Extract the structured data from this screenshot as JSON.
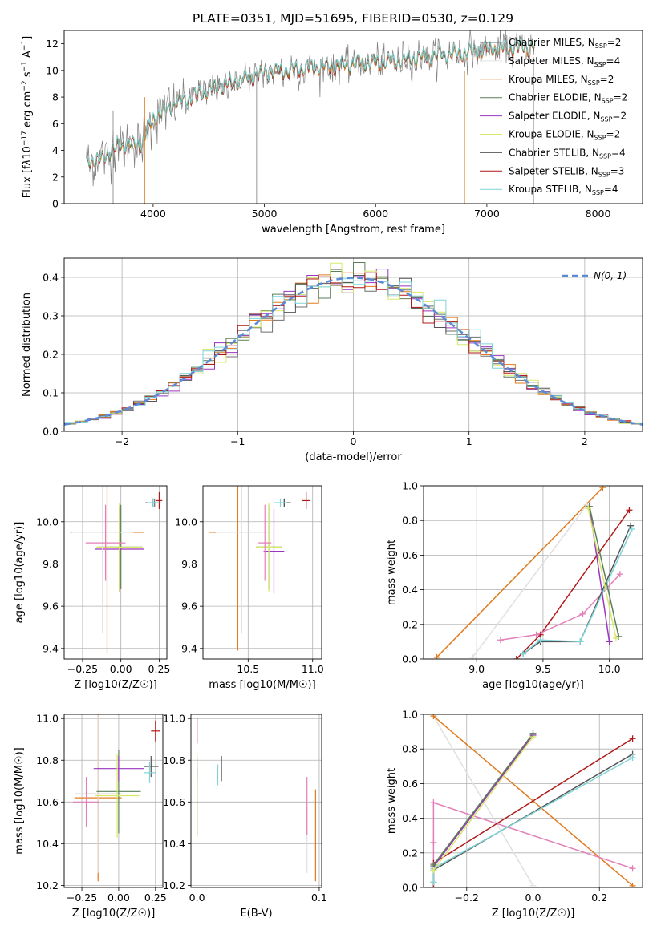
{
  "figure": {
    "title": "PLATE=0351, MJD=51695, FIBERID=0530, z=0.129"
  },
  "models": [
    {
      "name": "Chabrier MILES",
      "n_ssp": "2",
      "color": "#6f6f6f"
    },
    {
      "name": "Salpeter MILES",
      "n_ssp": "4",
      "color": "#e0e0e0"
    },
    {
      "name": "Kroupa MILES",
      "n_ssp": "2",
      "color": "#e07b1f"
    },
    {
      "name": "Chabrier ELODIE",
      "n_ssp": "2",
      "color": "#5a7f5a"
    },
    {
      "name": "Salpeter ELODIE",
      "n_ssp": "2",
      "color": "#9a35c0"
    },
    {
      "name": "Kroupa ELODIE",
      "n_ssp": "2",
      "color": "#d9e86a"
    },
    {
      "name": "Chabrier STELIB",
      "n_ssp": "4",
      "color": "#555555"
    },
    {
      "name": "Salpeter STELIB",
      "n_ssp": "3",
      "color": "#b01818"
    },
    {
      "name": "Kroupa STELIB",
      "n_ssp": "4",
      "color": "#7fd4d8"
    }
  ],
  "chart_data": [
    {
      "id": "spectrum",
      "type": "line",
      "title": "PLATE=0351, MJD=51695, FIBERID=0530, z=0.129",
      "xlabel": "wavelength [Angstrom, rest frame]",
      "ylabel": "Flux [f_λ 10^-17 erg cm^-2 s^-1 A^-1]",
      "xlim": [
        3200,
        8400
      ],
      "ylim": [
        0,
        13
      ],
      "xticks": [
        "4000",
        "5000",
        "6000",
        "7000",
        "8000"
      ],
      "yticks": [
        "0",
        "2",
        "4",
        "6",
        "8",
        "10",
        "12"
      ],
      "grid": false,
      "legend": "top-right",
      "spectrum_anchors": {
        "x": [
          3400,
          3500,
          3700,
          3900,
          4000,
          4200,
          4400,
          4600,
          4800,
          5000,
          5200,
          5400,
          5600,
          5800,
          6000,
          6200,
          6400,
          6600,
          6800,
          7000,
          7200,
          7400
        ],
        "y": [
          3.3,
          3.2,
          4.4,
          4.5,
          6.4,
          7.5,
          8.2,
          8.8,
          9.3,
          9.8,
          10.0,
          10.2,
          10.3,
          10.5,
          10.6,
          10.7,
          11.0,
          11.2,
          11.3,
          11.6,
          11.7,
          11.8
        ]
      }
    },
    {
      "id": "residuals",
      "type": "bar",
      "xlabel": "(data-model)/error",
      "ylabel": "Normed distribution",
      "xlim": [
        -2.5,
        2.5
      ],
      "ylim": [
        0,
        0.45
      ],
      "xticks": [
        "−2",
        "−1",
        "0",
        "1",
        "2"
      ],
      "yticks": [
        "0.0",
        "0.1",
        "0.2",
        "0.3",
        "0.4"
      ],
      "grid": true,
      "legend": "top-right",
      "legend_label": "N(0, 1)",
      "bin_width": 0.1
    },
    {
      "id": "z-age",
      "type": "scatter",
      "xlabel": "Z [log10(Z/Z☉)]",
      "ylabel": "age [log10(age/yr)]",
      "xlim": [
        -0.37,
        0.3
      ],
      "ylim": [
        9.35,
        10.17
      ],
      "xticks": [
        "−0.25",
        "0.00",
        "0.25"
      ],
      "yticks": [
        "9.4",
        "9.6",
        "9.8",
        "10.0"
      ],
      "grid": true,
      "points": [
        {
          "model": 0,
          "x": 0.22,
          "y": 10.09,
          "xerr": 0.04,
          "yerr": 0.02
        },
        {
          "model": 2,
          "x": -0.09,
          "y": 9.95,
          "xerr": 0.24,
          "yerr": 0.57
        },
        {
          "model": 3,
          "x": 0.0,
          "y": 9.88,
          "xerr": 0.14,
          "yerr": 0.2
        },
        {
          "model": 4,
          "x": -0.01,
          "y": 9.87,
          "xerr": 0.16,
          "yerr": 0.2
        },
        {
          "model": 5,
          "x": -0.01,
          "y": 9.88,
          "xerr": 0.15,
          "yerr": 0.21
        },
        {
          "model": 6,
          "x": 0.21,
          "y": 10.09,
          "xerr": 0.05,
          "yerr": 0.02
        },
        {
          "model": 7,
          "x": 0.25,
          "y": 10.1,
          "xerr": 0.02,
          "yerr": 0.04
        },
        {
          "model": 8,
          "x": 0.21,
          "y": 10.09,
          "xerr": 0.04,
          "yerr": 0.02
        },
        {
          "model": 1,
          "x": -0.12,
          "y": 9.95,
          "xerr": 0.2,
          "yerr": 0.48
        },
        {
          "model": 9,
          "x": -0.1,
          "y": 9.9,
          "xerr": 0.13,
          "yerr": 0.18
        }
      ]
    },
    {
      "id": "mass-age",
      "type": "scatter",
      "xlabel": "mass [log10(M/M☉)]",
      "ylabel": "",
      "xlim": [
        10.15,
        11.07
      ],
      "ylim": [
        9.35,
        10.17
      ],
      "xticks": [
        "10.5",
        "11.0"
      ],
      "yticks": [
        "9.4",
        "9.6",
        "9.8",
        "10.0"
      ],
      "grid": true,
      "points": [
        {
          "model": 0,
          "x": 10.78,
          "y": 10.09,
          "xerr": 0.05,
          "yerr": 0.02
        },
        {
          "model": 2,
          "x": 10.42,
          "y": 9.95,
          "xerr": 0.22,
          "yerr": 0.56
        },
        {
          "model": 3,
          "x": 10.66,
          "y": 9.88,
          "xerr": 0.1,
          "yerr": 0.2
        },
        {
          "model": 4,
          "x": 10.7,
          "y": 9.86,
          "xerr": 0.08,
          "yerr": 0.2
        },
        {
          "model": 5,
          "x": 10.66,
          "y": 9.88,
          "xerr": 0.1,
          "yerr": 0.21
        },
        {
          "model": 6,
          "x": 10.78,
          "y": 10.09,
          "xerr": 0.05,
          "yerr": 0.02
        },
        {
          "model": 7,
          "x": 10.95,
          "y": 10.1,
          "xerr": 0.03,
          "yerr": 0.04
        },
        {
          "model": 8,
          "x": 10.75,
          "y": 10.09,
          "xerr": 0.05,
          "yerr": 0.02
        },
        {
          "model": 1,
          "x": 10.45,
          "y": 9.95,
          "xerr": 0.2,
          "yerr": 0.48
        },
        {
          "model": 9,
          "x": 10.63,
          "y": 9.9,
          "xerr": 0.05,
          "yerr": 0.18
        }
      ]
    },
    {
      "id": "age-weight",
      "type": "line",
      "xlabel": "age [log10(age/yr)]",
      "ylabel": "mass weight",
      "xlim": [
        8.6,
        10.25
      ],
      "ylim": [
        0,
        1
      ],
      "xticks": [
        "9.0",
        "9.5",
        "10.0"
      ],
      "yticks": [
        "0.0",
        "0.2",
        "0.4",
        "0.6",
        "0.8",
        "1.0"
      ],
      "grid": true,
      "series": [
        {
          "model": 2,
          "x": [
            8.7,
            9.95
          ],
          "y": [
            0.01,
            0.99
          ]
        },
        {
          "model": 1,
          "x": [
            8.97,
            9.83
          ],
          "y": [
            0.01,
            0.89
          ]
        },
        {
          "model": 7,
          "x": [
            9.3,
            9.48,
            10.15
          ],
          "y": [
            0.0,
            0.14,
            0.86
          ]
        },
        {
          "model": 9,
          "x": [
            9.18,
            9.45,
            9.8,
            10.08
          ],
          "y": [
            0.11,
            0.14,
            0.26,
            0.49
          ]
        },
        {
          "model": 6,
          "x": [
            9.35,
            9.48,
            9.78,
            10.16
          ],
          "y": [
            0.03,
            0.1,
            0.1,
            0.77
          ]
        },
        {
          "model": 8,
          "x": [
            9.35,
            9.48,
            9.78,
            10.17
          ],
          "y": [
            0.03,
            0.11,
            0.1,
            0.75
          ]
        },
        {
          "model": 4,
          "x": [
            9.85,
            10.0
          ],
          "y": [
            0.88,
            0.1
          ]
        },
        {
          "model": 3,
          "x": [
            9.85,
            10.07
          ],
          "y": [
            0.88,
            0.13
          ]
        },
        {
          "model": 5,
          "x": [
            9.84,
            10.05
          ],
          "y": [
            0.87,
            0.12
          ]
        }
      ]
    },
    {
      "id": "z-mass",
      "type": "scatter",
      "xlabel": "Z [log10(Z/Z☉)]",
      "ylabel": "mass [log10(M/M☉)]",
      "xlim": [
        -0.37,
        0.3
      ],
      "ylim": [
        10.19,
        11.02
      ],
      "xticks": [
        "−0.25",
        "0.00",
        "0.25"
      ],
      "yticks": [
        "10.2",
        "10.4",
        "10.6",
        "10.8",
        "11.0"
      ],
      "grid": true,
      "points": [
        {
          "model": 2,
          "x": -0.14,
          "y": 10.62,
          "xerr": 0.16,
          "yerr": 0.4
        },
        {
          "model": 1,
          "x": -0.14,
          "y": 10.64,
          "xerr": 0.16,
          "yerr": 0.38
        },
        {
          "model": 3,
          "x": 0.0,
          "y": 10.65,
          "xerr": 0.15,
          "yerr": 0.2
        },
        {
          "model": 4,
          "x": 0.0,
          "y": 10.76,
          "xerr": 0.17,
          "yerr": 0.06
        },
        {
          "model": 5,
          "x": -0.01,
          "y": 10.63,
          "xerr": 0.15,
          "yerr": 0.2
        },
        {
          "model": 6,
          "x": 0.22,
          "y": 10.77,
          "xerr": 0.05,
          "yerr": 0.05
        },
        {
          "model": 7,
          "x": 0.25,
          "y": 10.94,
          "xerr": 0.03,
          "yerr": 0.05
        },
        {
          "model": 8,
          "x": 0.21,
          "y": 10.74,
          "xerr": 0.04,
          "yerr": 0.05
        },
        {
          "model": 9,
          "x": -0.22,
          "y": 10.6,
          "xerr": 0.09,
          "yerr": 0.12
        }
      ]
    },
    {
      "id": "ebv-mass",
      "type": "scatter",
      "xlabel": "E(B-V)",
      "ylabel": "",
      "xlim": [
        -0.005,
        0.102
      ],
      "ylim": [
        10.19,
        11.02
      ],
      "xticks": [
        "0.0",
        "0.1"
      ],
      "yticks": [
        "10.2",
        "10.4",
        "10.6",
        "10.8",
        "11.0"
      ],
      "grid": true,
      "points": [
        {
          "model": 2,
          "x": 0.097,
          "y": 10.44,
          "xerr": 0,
          "yerr": 0.22
        },
        {
          "model": 1,
          "x": 0.09,
          "y": 10.42,
          "xerr": 0,
          "yerr": 0.16
        },
        {
          "model": 9,
          "x": 0.09,
          "y": 10.58,
          "xerr": 0,
          "yerr": 0.14
        },
        {
          "model": 3,
          "x": 0.0,
          "y": 10.6,
          "xerr": 0,
          "yerr": 0.16
        },
        {
          "model": 4,
          "x": 0.0,
          "y": 10.76,
          "xerr": 0,
          "yerr": 0.05
        },
        {
          "model": 5,
          "x": 0.0,
          "y": 10.63,
          "xerr": 0,
          "yerr": 0.2
        },
        {
          "model": 6,
          "x": 0.02,
          "y": 10.76,
          "xerr": 0,
          "yerr": 0.06
        },
        {
          "model": 7,
          "x": 0.0,
          "y": 10.94,
          "xerr": 0,
          "yerr": 0.06
        },
        {
          "model": 8,
          "x": 0.017,
          "y": 10.73,
          "xerr": 0,
          "yerr": 0.05
        }
      ]
    },
    {
      "id": "z-weight",
      "type": "line",
      "xlabel": "Z [log10(Z/Z☉)]",
      "ylabel": "mass weight",
      "xlim": [
        -0.33,
        0.33
      ],
      "ylim": [
        0,
        1
      ],
      "xticks": [
        "−0.2",
        "0.0",
        "0.2"
      ],
      "yticks": [
        "0.0",
        "0.2",
        "0.4",
        "0.6",
        "0.8",
        "1.0"
      ],
      "grid": true,
      "series": [
        {
          "model": 1,
          "x": [
            -0.3,
            0.0
          ],
          "y": [
            0.99,
            0.01
          ]
        },
        {
          "model": 2,
          "x": [
            -0.3,
            0.3
          ],
          "y": [
            0.99,
            0.01
          ]
        },
        {
          "model": 9,
          "x": [
            -0.3,
            -0.3,
            -0.3,
            0.3
          ],
          "y": [
            0.14,
            0.26,
            0.49,
            0.11
          ]
        },
        {
          "model": 7,
          "x": [
            -0.3,
            -0.3,
            0.3
          ],
          "y": [
            0.0,
            0.14,
            0.86
          ]
        },
        {
          "model": 6,
          "x": [
            -0.3,
            -0.3,
            0.3
          ],
          "y": [
            0.03,
            0.1,
            0.77
          ]
        },
        {
          "model": 8,
          "x": [
            -0.3,
            -0.3,
            0.3
          ],
          "y": [
            0.03,
            0.11,
            0.75
          ]
        },
        {
          "model": 4,
          "x": [
            -0.3,
            0.0
          ],
          "y": [
            0.12,
            0.88
          ]
        },
        {
          "model": 3,
          "x": [
            -0.3,
            0.0
          ],
          "y": [
            0.13,
            0.89
          ]
        },
        {
          "model": 5,
          "x": [
            -0.3,
            0.0
          ],
          "y": [
            0.1,
            0.87
          ]
        }
      ]
    }
  ]
}
